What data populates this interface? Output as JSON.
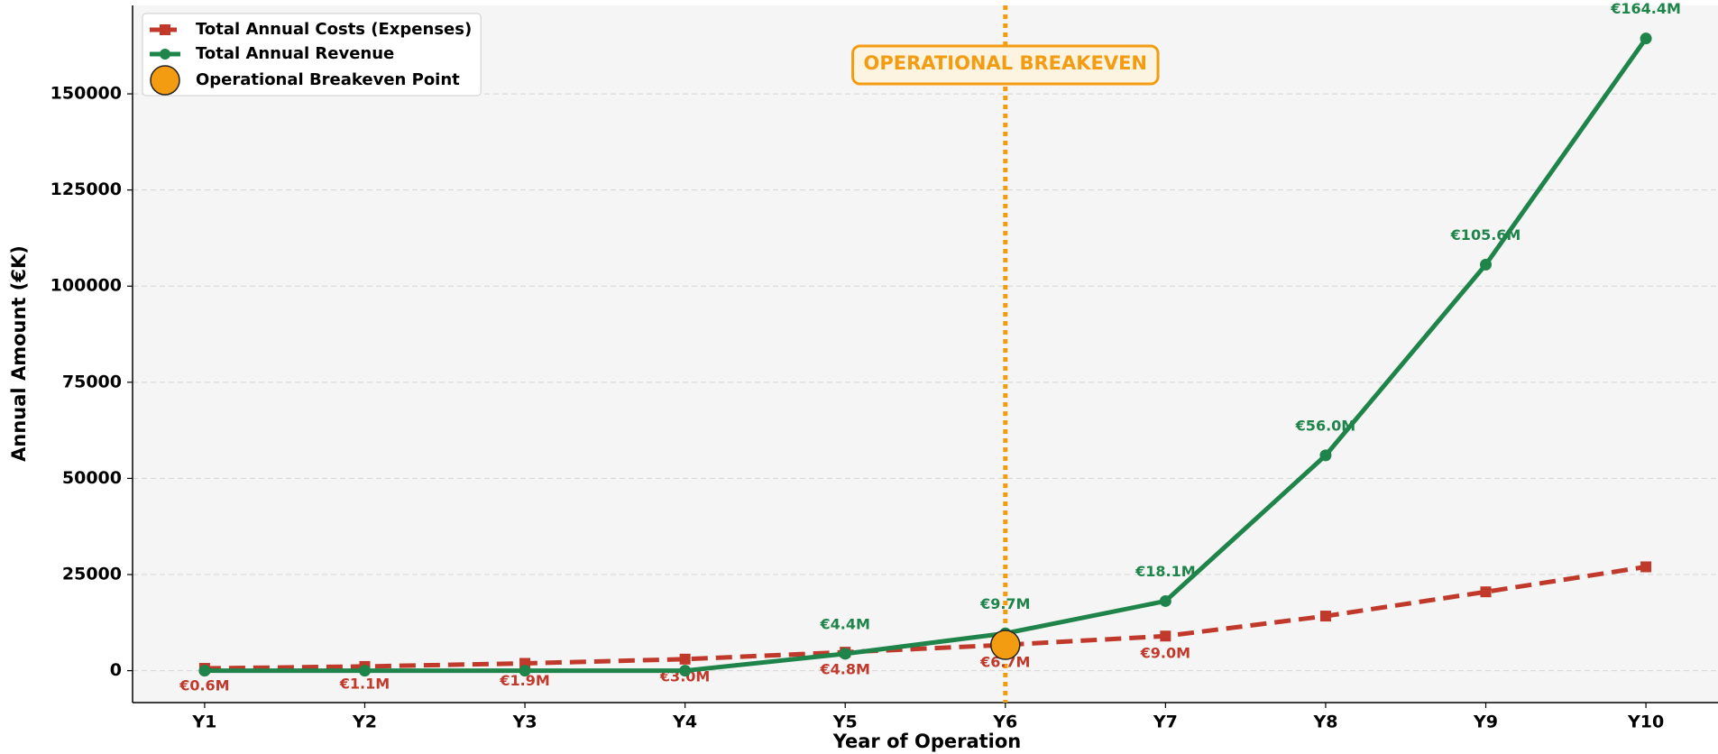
{
  "chart_data": {
    "type": "line",
    "xlabel": "Year of Operation",
    "ylabel": "Annual Amount (€K)",
    "categories": [
      "Y1",
      "Y2",
      "Y3",
      "Y4",
      "Y5",
      "Y6",
      "Y7",
      "Y8",
      "Y9",
      "Y10"
    ],
    "series": [
      {
        "name": "Total Annual Costs (Expenses)",
        "color": "#c0392b",
        "dash": true,
        "marker": "square",
        "values": [
          600,
          1100,
          1900,
          3000,
          4800,
          6700,
          9000,
          14200,
          20500,
          27000
        ],
        "value_labels": [
          "€0.6M",
          "€1.1M",
          "€1.9M",
          "€3.0M",
          "€4.8M",
          "€6.7M",
          "€9.0M",
          null,
          null,
          null
        ],
        "label_side": "below"
      },
      {
        "name": "Total Annual Revenue",
        "color": "#1e8449",
        "dash": false,
        "marker": "circle",
        "values": [
          0,
          0,
          0,
          0,
          4400,
          9700,
          18100,
          56000,
          105600,
          164400
        ],
        "value_labels": [
          null,
          null,
          null,
          null,
          "€4.4M",
          "€9.7M",
          "€18.1M",
          "€56.0M",
          "€105.6M",
          "€164.4M"
        ],
        "label_side": "above"
      }
    ],
    "breakeven": {
      "name": "Operational Breakeven Point",
      "category": "Y6",
      "value": 6700,
      "color": "#f39c12",
      "annotation": "OPERATIONAL BREAKEVEN"
    },
    "ylim": [
      -8300,
      173000
    ],
    "yticks": [
      0,
      25000,
      50000,
      75000,
      100000,
      125000,
      150000
    ],
    "grid": true,
    "legend": "upper left"
  }
}
